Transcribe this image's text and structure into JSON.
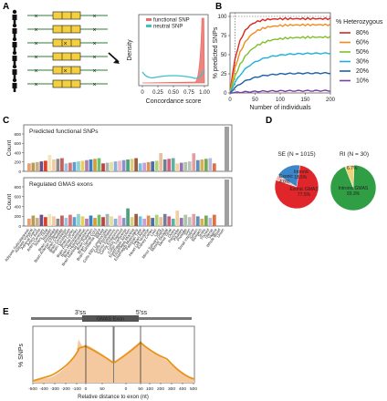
{
  "panels": {
    "A": "A",
    "B": "B",
    "C": "C",
    "D": "D",
    "E": "E"
  },
  "panel_a": {
    "legend": [
      "functional SNP",
      "neutral SNP"
    ],
    "ylabel": "Density",
    "xlabel": "Concordance score",
    "xticks": [
      "0",
      "0.25",
      "0.50",
      "0.75",
      "1.00"
    ],
    "colors": {
      "functional": "#e8706a",
      "neutral": "#3fbfc9"
    }
  },
  "panel_b": {
    "ylabel": "% predicted SNPs",
    "xlabel": "Number of individuals",
    "yticks": [
      "0",
      "25",
      "50",
      "75",
      "100"
    ],
    "xticks": [
      "0",
      "50",
      "100",
      "150",
      "200"
    ],
    "legend_title": "% Heterozygous",
    "series": [
      {
        "name": "80%",
        "color": "#d7261e",
        "plateau": 97
      },
      {
        "name": "60%",
        "color": "#f08c1a",
        "plateau": 89
      },
      {
        "name": "50%",
        "color": "#7fbf2a",
        "plateau": 73
      },
      {
        "name": "30%",
        "color": "#1fb0d8",
        "plateau": 52
      },
      {
        "name": "20%",
        "color": "#1f5fa8",
        "plateau": 26
      },
      {
        "name": "10%",
        "color": "#7b3f9e",
        "plateau": 3
      }
    ]
  },
  "panel_c": {
    "ylabel": "Count",
    "yticks": [
      "0",
      "200",
      "400",
      "600",
      "800"
    ],
    "sub1_title": "Predicted functional SNPs",
    "sub2_title": "Regulated GMAS exons",
    "bar_colors": [
      "#e8a070",
      "#b59a5a",
      "#c8b080",
      "#6b4f8a",
      "#d8402a",
      "#f0e6c0",
      "#f3c9a0",
      "#8a8a8a",
      "#c06060",
      "#a0c0e0",
      "#e07070",
      "#5aa0d0",
      "#8fd0d0",
      "#e8d060",
      "#b080b0",
      "#3a7fbf",
      "#d0a040",
      "#6fbf6f",
      "#c04040",
      "#aab0b0",
      "#e0e0a0",
      "#8ab0d8",
      "#f0b8c8",
      "#9090c8",
      "#50a080",
      "#d8d080",
      "#a05a3a",
      "#70c0e0",
      "#c8a0d8",
      "#e09050",
      "#4a6fa8",
      "#b0d080",
      "#e8c0a0",
      "#708090",
      "#d06080",
      "#60b0a0",
      "#f0d0a0",
      "#9a70b0",
      "#a8c8a8",
      "#c0c0c0",
      "#e0a0a0",
      "#5890c0",
      "#d8b050",
      "#78a858",
      "#b8b8e0",
      "#e07040"
    ],
    "labels": [
      "Adipose Subcutaneous",
      "Adipose Visceral",
      "Adrenal Gland",
      "Artery Aorta",
      "Artery Coronary",
      "Artery Tibial",
      "Bladder",
      "Brain Amygdala",
      "Brain Anterior Cingulate",
      "Brain Caudate",
      "Brain Cerebellar",
      "Brain Cerebellum",
      "Brain Cortex",
      "Brain Frontal Cortex",
      "Brain Hippocampus",
      "Brain Hypothalamus",
      "Brain Nucleus Accumbens",
      "Brain Putamen",
      "Brain Spinal Cord",
      "Brain Substantia Nigra",
      "Breast",
      "Cells EBV Lymphocytes",
      "Cells Fibroblasts",
      "Cervix Ectocervix",
      "Cervix Endocervix",
      "Colon Sigmoid",
      "Colon Transverse",
      "Esophagus Junction",
      "Esophagus Mucosa",
      "Esophagus Muscularis",
      "Fallopian Tube",
      "Heart Atrial",
      "Heart Left Ventricle",
      "Kidney Cortex",
      "Liver",
      "Lung",
      "Minor Salivary Gland",
      "Muscle Skeletal",
      "Nerve Tibial",
      "Ovary",
      "Pancreas",
      "Pituitary",
      "Prostate",
      "Skin",
      "Small Intestine",
      "Spleen",
      "Stomach",
      "Testis",
      "Thyroid",
      "Uterus",
      "Vagina",
      "Whole Blood",
      "Union"
    ]
  },
  "panel_d": {
    "se_title": "SE (N = 1015)",
    "ri_title": "RI (N = 30)",
    "se_slices": [
      {
        "label": "Exonic",
        "value": 4.0,
        "color": "#f2b6b0"
      },
      {
        "label": "Intronic",
        "value": 18.5,
        "color": "#3a86c8"
      },
      {
        "label": "Exonic GMAS",
        "value": 77.5,
        "color": "#e0262a"
      }
    ],
    "se_texts": {
      "exonic": "Exonic",
      "exonic_pct": "4.0%",
      "intronic": "Intronic",
      "intronic_pct": "18.5%",
      "gmas": "Exonic GMAS",
      "gmas_pct": "77.5%"
    },
    "ri_slices": [
      {
        "label": "Exonic",
        "value": 6.7,
        "color": "#f0d27a"
      },
      {
        "label": "Intronic GMAS",
        "value": 93.3,
        "color": "#2f9e44"
      }
    ],
    "ri_texts": {
      "exonic_pct": "6.7%",
      "gmas": "Intronic GMAS",
      "gmas_pct": "93.3%"
    }
  },
  "panel_e": {
    "ss3": "3'ss",
    "ss5": "5'ss",
    "exon_label": "GMAS Exon",
    "ylabel": "% SNPs",
    "xlabel": "Relative distance to exon (nt)",
    "xticks": [
      "-500",
      "-400",
      "-300",
      "-200",
      "-100",
      "0",
      "50",
      "0",
      "50",
      "100",
      "200",
      "300",
      "400",
      "500"
    ]
  }
}
